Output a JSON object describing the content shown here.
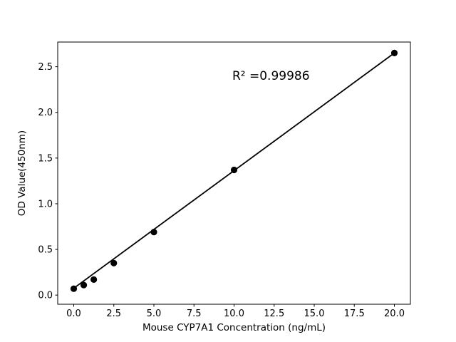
{
  "figure": {
    "background": "#ffffff"
  },
  "chart_data": {
    "type": "scatter",
    "title": "",
    "xlabel": "Mouse CYP7A1 Concentration (ng/mL)",
    "ylabel": "OD Value(450nm)",
    "annotation": {
      "text": "R² =0.99986",
      "x": 12.3,
      "y": 2.4
    },
    "x": [
      0,
      0.625,
      1.25,
      2.5,
      5,
      10,
      20
    ],
    "y": [
      0.07,
      0.11,
      0.17,
      0.35,
      0.69,
      1.37,
      2.65
    ],
    "fit_line": {
      "x": [
        0,
        20
      ],
      "y": [
        0.075,
        2.65
      ]
    },
    "x_ticks": [
      0.0,
      2.5,
      5.0,
      7.5,
      10.0,
      12.5,
      15.0,
      17.5,
      20.0
    ],
    "y_ticks": [
      0.0,
      0.5,
      1.0,
      1.5,
      2.0,
      2.5
    ],
    "xlim": [
      -1.0,
      21.0
    ],
    "ylim": [
      -0.1,
      2.77
    ],
    "grid": false,
    "legend": null,
    "colors": {
      "marker": "#000000",
      "line": "#000000",
      "text": "#000000",
      "spine": "#000000",
      "background": "#ffffff"
    }
  }
}
